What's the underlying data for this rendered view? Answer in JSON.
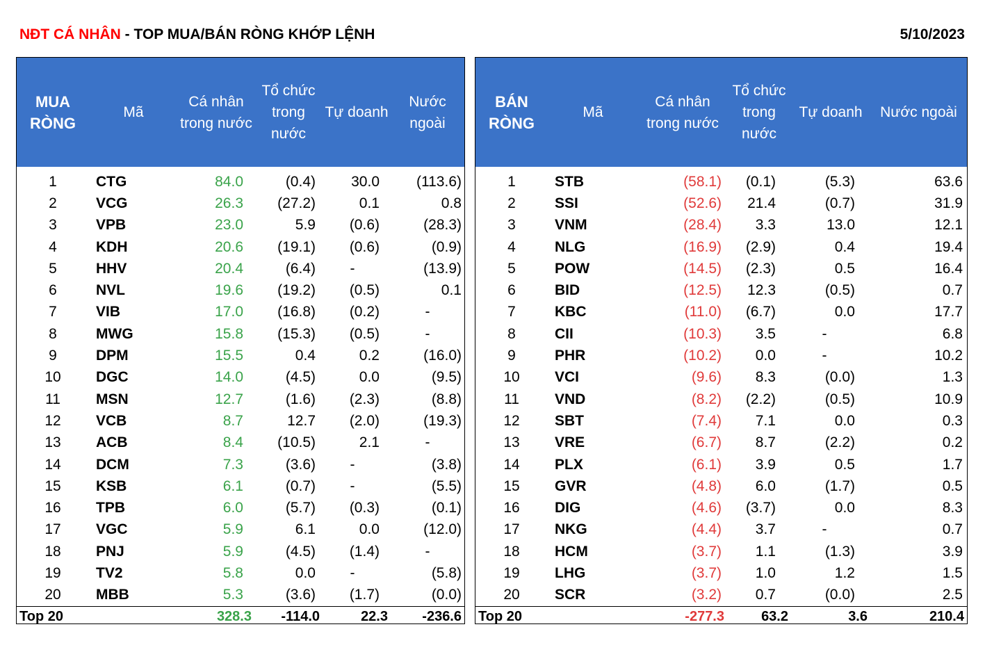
{
  "header": {
    "title_red": "NĐT CÁ NHÂN",
    "title_rest": " - TOP MUA/BÁN RÒNG KHỚP LỆNH",
    "date": "5/10/2023"
  },
  "buy": {
    "headers": [
      "MUA RÒNG",
      "Mã",
      "Cá nhân trong nước",
      "Tổ chức trong nước",
      "Tự doanh",
      "Nước ngoài"
    ],
    "rows": [
      [
        "1",
        "CTG",
        "84.0",
        "(0.4)",
        "30.0",
        "(113.6)"
      ],
      [
        "2",
        "VCG",
        "26.3",
        "(27.2)",
        "0.1",
        "0.8"
      ],
      [
        "3",
        "VPB",
        "23.0",
        "5.9",
        "(0.6)",
        "(28.3)"
      ],
      [
        "4",
        "KDH",
        "20.6",
        "(19.1)",
        "(0.6)",
        "(0.9)"
      ],
      [
        "5",
        "HHV",
        "20.4",
        "(6.4)",
        "-",
        "(13.9)"
      ],
      [
        "6",
        "NVL",
        "19.6",
        "(19.2)",
        "(0.5)",
        "0.1"
      ],
      [
        "7",
        "VIB",
        "17.0",
        "(16.8)",
        "(0.2)",
        "-"
      ],
      [
        "8",
        "MWG",
        "15.8",
        "(15.3)",
        "(0.5)",
        "-"
      ],
      [
        "9",
        "DPM",
        "15.5",
        "0.4",
        "0.2",
        "(16.0)"
      ],
      [
        "10",
        "DGC",
        "14.0",
        "(4.5)",
        "0.0",
        "(9.5)"
      ],
      [
        "11",
        "MSN",
        "12.7",
        "(1.6)",
        "(2.3)",
        "(8.8)"
      ],
      [
        "12",
        "VCB",
        "8.7",
        "12.7",
        "(2.0)",
        "(19.3)"
      ],
      [
        "13",
        "ACB",
        "8.4",
        "(10.5)",
        "2.1",
        "-"
      ],
      [
        "14",
        "DCM",
        "7.3",
        "(3.6)",
        "-",
        "(3.8)"
      ],
      [
        "15",
        "KSB",
        "6.1",
        "(0.7)",
        "-",
        "(5.5)"
      ],
      [
        "16",
        "TPB",
        "6.0",
        "(5.7)",
        "(0.3)",
        "(0.1)"
      ],
      [
        "17",
        "VGC",
        "5.9",
        "6.1",
        "0.0",
        "(12.0)"
      ],
      [
        "18",
        "PNJ",
        "5.9",
        "(4.5)",
        "(1.4)",
        "-"
      ],
      [
        "19",
        "TV2",
        "5.8",
        "0.0",
        "-",
        "(5.8)"
      ],
      [
        "20",
        "MBB",
        "5.3",
        "(3.6)",
        "(1.7)",
        "(0.0)"
      ]
    ],
    "total": [
      "Top 20",
      "328.3",
      "-114.0",
      "22.3",
      "-236.6"
    ]
  },
  "sell": {
    "headers": [
      "BÁN RÒNG",
      "Mã",
      "Cá nhân trong nước",
      "Tổ chức trong nước",
      "Tự doanh",
      "Nước ngoài"
    ],
    "rows": [
      [
        "1",
        "STB",
        "(58.1)",
        "(0.1)",
        "(5.3)",
        "63.6"
      ],
      [
        "2",
        "SSI",
        "(52.6)",
        "21.4",
        "(0.7)",
        "31.9"
      ],
      [
        "3",
        "VNM",
        "(28.4)",
        "3.3",
        "13.0",
        "12.1"
      ],
      [
        "4",
        "NLG",
        "(16.9)",
        "(2.9)",
        "0.4",
        "19.4"
      ],
      [
        "5",
        "POW",
        "(14.5)",
        "(2.3)",
        "0.5",
        "16.4"
      ],
      [
        "6",
        "BID",
        "(12.5)",
        "12.3",
        "(0.5)",
        "0.7"
      ],
      [
        "7",
        "KBC",
        "(11.0)",
        "(6.7)",
        "0.0",
        "17.7"
      ],
      [
        "8",
        "CII",
        "(10.3)",
        "3.5",
        "-",
        "6.8"
      ],
      [
        "9",
        "PHR",
        "(10.2)",
        "0.0",
        "-",
        "10.2"
      ],
      [
        "10",
        "VCI",
        "(9.6)",
        "8.3",
        "(0.0)",
        "1.3"
      ],
      [
        "11",
        "VND",
        "(8.2)",
        "(2.2)",
        "(0.5)",
        "10.9"
      ],
      [
        "12",
        "SBT",
        "(7.4)",
        "7.1",
        "0.0",
        "0.3"
      ],
      [
        "13",
        "VRE",
        "(6.7)",
        "8.7",
        "(2.2)",
        "0.2"
      ],
      [
        "14",
        "PLX",
        "(6.1)",
        "3.9",
        "0.5",
        "1.7"
      ],
      [
        "15",
        "GVR",
        "(4.8)",
        "6.0",
        "(1.7)",
        "0.5"
      ],
      [
        "16",
        "DIG",
        "(4.6)",
        "(3.7)",
        "0.0",
        "8.3"
      ],
      [
        "17",
        "NKG",
        "(4.4)",
        "3.7",
        "-",
        "0.7"
      ],
      [
        "18",
        "HCM",
        "(3.7)",
        "1.1",
        "(1.3)",
        "3.9"
      ],
      [
        "19",
        "LHG",
        "(3.7)",
        "1.0",
        "1.2",
        "1.5"
      ],
      [
        "20",
        "SCR",
        "(3.2)",
        "0.7",
        "(0.0)",
        "2.5"
      ]
    ],
    "total": [
      "Top 20",
      "-277.3",
      "63.2",
      "3.6",
      "210.4"
    ]
  },
  "colors": {
    "header_bg": "#3b73c8",
    "title_red": "#ff0000",
    "buy_value": "#3aa34a",
    "sell_value": "#e03a3a"
  }
}
